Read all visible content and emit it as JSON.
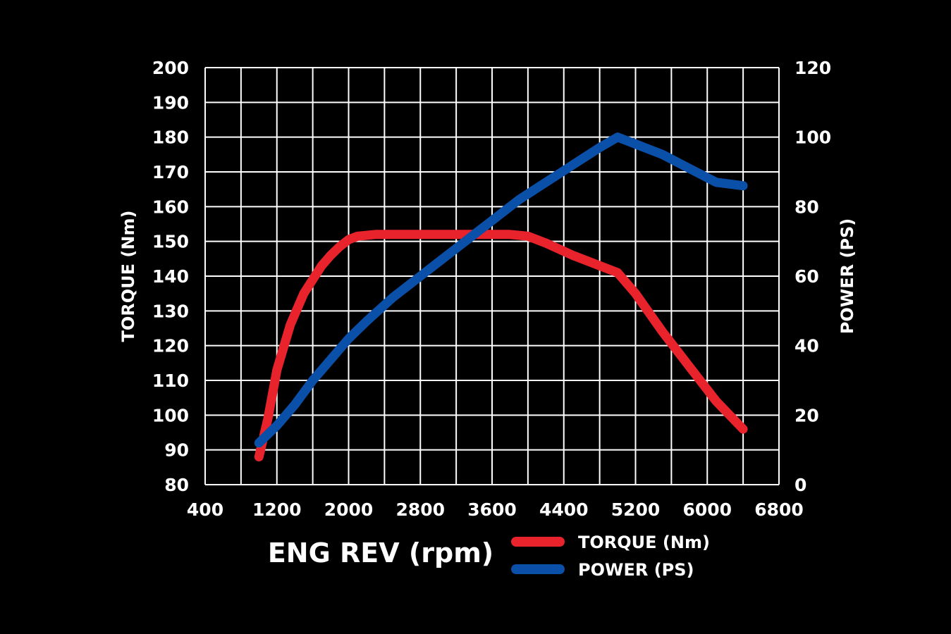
{
  "chart_data": {
    "type": "line",
    "title": "",
    "xlabel": "ENG REV (rpm)",
    "ylabel_left": "TORQUE (Nm)",
    "ylabel_right": "POWER (PS)",
    "xlim": [
      400,
      6800
    ],
    "ylim_left": [
      80,
      200
    ],
    "ylim_right": [
      0,
      120
    ],
    "grid": true,
    "x_ticks": [
      "400",
      "1200",
      "2000",
      "2800",
      "3600",
      "4400",
      "5200",
      "6000",
      "6800"
    ],
    "x_tick_values": [
      400,
      1200,
      2000,
      2800,
      3600,
      4400,
      5200,
      6000,
      6800
    ],
    "x_grid_step": 400,
    "y_left_ticks": [
      "200",
      "190",
      "180",
      "170",
      "160",
      "150",
      "140",
      "130",
      "120",
      "110",
      "100",
      "90",
      "80"
    ],
    "y_left_tick_values": [
      200,
      190,
      180,
      170,
      160,
      150,
      140,
      130,
      120,
      110,
      100,
      90,
      80
    ],
    "y_right_ticks": [
      "120",
      "100",
      "80",
      "60",
      "40",
      "20",
      "0"
    ],
    "y_right_tick_values": [
      120,
      100,
      80,
      60,
      40,
      20,
      0
    ],
    "series": [
      {
        "name": "TORQUE (Nm)",
        "axis": "left",
        "color": "#e8232b",
        "x": [
          1000,
          1100,
          1200,
          1350,
          1500,
          1600,
          1700,
          1800,
          1900,
          2000,
          2100,
          2300,
          2600,
          3000,
          3400,
          3800,
          4000,
          4200,
          4500,
          4800,
          5000,
          5200,
          5500,
          5800,
          6100,
          6400
        ],
        "y": [
          88,
          99,
          113,
          126,
          135,
          139,
          143,
          146,
          148.5,
          150.5,
          151.5,
          152,
          152,
          152,
          152,
          152,
          151.5,
          149.5,
          146,
          143,
          141,
          135,
          124,
          114,
          104,
          96
        ]
      },
      {
        "name": "POWER (PS)",
        "axis": "right",
        "color": "#0a4fa8",
        "x": [
          1000,
          1200,
          1400,
          1600,
          1800,
          2000,
          2200,
          2500,
          2800,
          3100,
          3400,
          3700,
          3900,
          4200,
          4500,
          4800,
          5000,
          5200,
          5500,
          5800,
          6100,
          6400
        ],
        "y": [
          12,
          17,
          23,
          30,
          36,
          42,
          47,
          54,
          60,
          66,
          72,
          78,
          82,
          87,
          92,
          97,
          100,
          98,
          95,
          91,
          87,
          86
        ]
      }
    ]
  }
}
